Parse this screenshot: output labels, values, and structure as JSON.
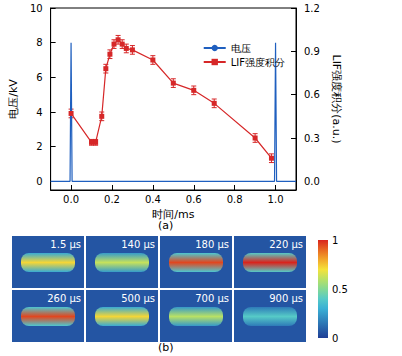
{
  "chart_data": [
    {
      "type": "line",
      "panel_label": "(a)",
      "xlabel": "时间/ms",
      "ylabel": "电压/kV",
      "y2label": "LIF强度积分(a.u.)",
      "xlim": [
        -0.1,
        1.1
      ],
      "xticks": [
        {
          "value": 0,
          "label": "0.0"
        },
        0.2,
        0.4,
        0.6,
        0.8,
        {
          "value": 1,
          "label": "1.0"
        }
      ],
      "ylim": [
        -0.5,
        10
      ],
      "yticks": [
        0,
        2,
        4,
        6,
        8,
        10
      ],
      "y2lim": [
        -0.06,
        1.2
      ],
      "y2ticks": [
        {
          "value": 0,
          "label": "0.0"
        },
        0.3,
        0.6,
        0.9,
        1.2
      ],
      "grid": false,
      "legend": "upper right",
      "series": [
        {
          "name": "电压",
          "color": "#1f5fbf",
          "marker": "none",
          "line_style": "solid",
          "x": [
            -0.1,
            -0.005,
            0,
            0.005,
            0.995,
            1.0,
            1.005,
            1.1
          ],
          "values": [
            0,
            0,
            8,
            0,
            0,
            8,
            0,
            0
          ]
        },
        {
          "name": "LIF强度积分",
          "color": "#d62728",
          "marker": "square",
          "line_style": "solid",
          "axis": "y2",
          "x": [
            0,
            0.1,
            0.12,
            0.15,
            0.17,
            0.19,
            0.21,
            0.23,
            0.25,
            0.27,
            0.3,
            0.4,
            0.5,
            0.6,
            0.7,
            0.9,
            0.98
          ],
          "values": [
            0.47,
            0.27,
            0.27,
            0.45,
            0.78,
            0.88,
            0.95,
            0.98,
            0.95,
            0.92,
            0.91,
            0.84,
            0.68,
            0.63,
            0.54,
            0.3,
            0.16
          ],
          "errors": [
            0.03,
            0.02,
            0.02,
            0.03,
            0.03,
            0.03,
            0.03,
            0.03,
            0.03,
            0.03,
            0.03,
            0.03,
            0.03,
            0.03,
            0.03,
            0.03,
            0.03
          ]
        }
      ]
    },
    {
      "type": "image_grid",
      "panel_label": "(b)",
      "images": [
        {
          "label": "1.5 μs",
          "peak": 0.72
        },
        {
          "label": "140 μs",
          "peak": 0.62
        },
        {
          "label": "180 μs",
          "peak": 0.95
        },
        {
          "label": "220 μs",
          "peak": 1.0
        },
        {
          "label": "260 μs",
          "peak": 0.95
        },
        {
          "label": "500 μs",
          "peak": 0.72
        },
        {
          "label": "700 μs",
          "peak": 0.6
        },
        {
          "label": "900 μs",
          "peak": 0.4
        }
      ],
      "colorbar": {
        "range": [
          0,
          1
        ],
        "ticks": [
          0,
          0.5,
          1
        ]
      }
    }
  ]
}
